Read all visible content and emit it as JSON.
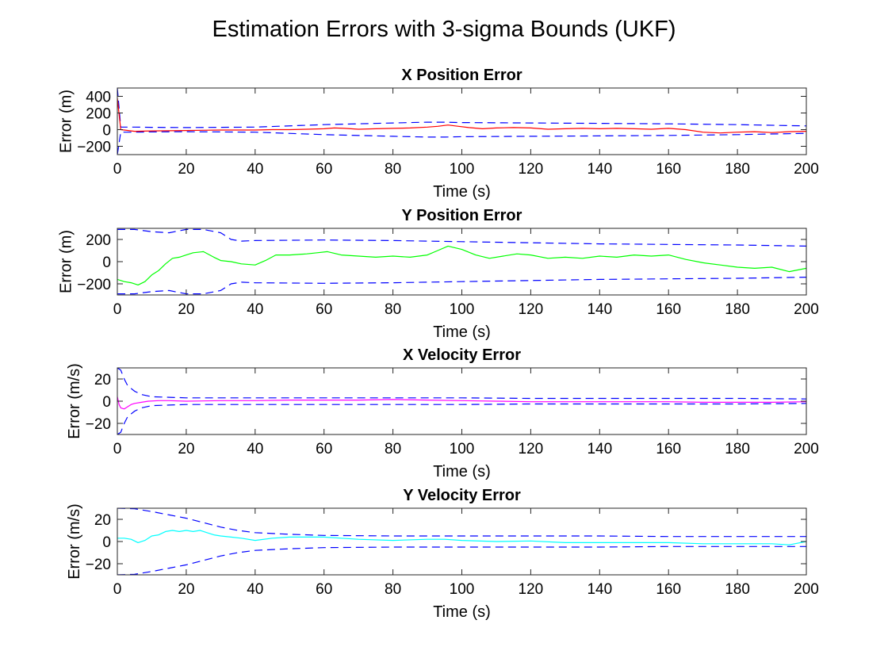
{
  "figure": {
    "title": "Estimation Errors with 3-sigma Bounds (UKF)"
  },
  "chart_data": [
    {
      "type": "line",
      "title": "X Position Error",
      "xlabel": "Time (s)",
      "ylabel": "Error (m)",
      "xlim": [
        0,
        200
      ],
      "ylim": [
        -300,
        500
      ],
      "xticks": [
        0,
        20,
        40,
        60,
        80,
        100,
        120,
        140,
        160,
        180,
        200
      ],
      "yticks": [
        -200,
        0,
        200,
        400
      ],
      "grid": false,
      "series": [
        {
          "role": "error",
          "color": "#ff0000",
          "x": [
            0,
            1,
            2,
            5,
            10,
            20,
            30,
            40,
            45,
            50,
            55,
            60,
            63,
            66,
            70,
            75,
            80,
            85,
            90,
            93,
            96,
            99,
            102,
            106,
            110,
            115,
            120,
            125,
            130,
            135,
            140,
            145,
            150,
            155,
            160,
            165,
            170,
            175,
            180,
            185,
            190,
            195,
            200
          ],
          "y": [
            380,
            0,
            -5,
            -20,
            -15,
            -10,
            -5,
            -5,
            0,
            0,
            5,
            10,
            20,
            15,
            5,
            10,
            15,
            20,
            30,
            40,
            55,
            40,
            25,
            10,
            20,
            25,
            20,
            5,
            10,
            15,
            10,
            15,
            10,
            5,
            15,
            0,
            -30,
            -40,
            -30,
            -25,
            -35,
            -25,
            -20
          ]
        },
        {
          "role": "upper-bound",
          "color": "#0000ff",
          "dash": true,
          "x": [
            0,
            1,
            2,
            5,
            10,
            20,
            40,
            60,
            80,
            90,
            95,
            100,
            120,
            140,
            160,
            180,
            200
          ],
          "y": [
            500,
            30,
            30,
            30,
            28,
            25,
            30,
            60,
            80,
            90,
            90,
            85,
            80,
            75,
            70,
            60,
            45
          ]
        },
        {
          "role": "lower-bound",
          "color": "#0000ff",
          "dash": true,
          "x": [
            0,
            1,
            2,
            5,
            10,
            20,
            40,
            60,
            80,
            90,
            95,
            100,
            120,
            140,
            160,
            180,
            200
          ],
          "y": [
            -300,
            -30,
            -30,
            -30,
            -28,
            -25,
            -30,
            -60,
            -80,
            -90,
            -90,
            -85,
            -80,
            -75,
            -70,
            -60,
            -45
          ]
        }
      ]
    },
    {
      "type": "line",
      "title": "Y Position Error",
      "xlabel": "Time (s)",
      "ylabel": "Error (m)",
      "xlim": [
        0,
        200
      ],
      "ylim": [
        -300,
        300
      ],
      "xticks": [
        0,
        20,
        40,
        60,
        80,
        100,
        120,
        140,
        160,
        180,
        200
      ],
      "yticks": [
        -200,
        0,
        200
      ],
      "grid": false,
      "series": [
        {
          "role": "error",
          "color": "#00ff00",
          "x": [
            0,
            2,
            4,
            6,
            8,
            10,
            12,
            14,
            16,
            18,
            20,
            22,
            25,
            28,
            30,
            33,
            36,
            40,
            43,
            46,
            50,
            55,
            58,
            61,
            65,
            70,
            75,
            80,
            85,
            90,
            93,
            96,
            100,
            104,
            108,
            112,
            116,
            120,
            125,
            130,
            135,
            140,
            145,
            150,
            155,
            160,
            165,
            170,
            175,
            180,
            185,
            190,
            195,
            200
          ],
          "y": [
            -160,
            -180,
            -190,
            -210,
            -180,
            -120,
            -80,
            -20,
            30,
            40,
            60,
            80,
            90,
            40,
            10,
            0,
            -20,
            -30,
            10,
            60,
            60,
            70,
            80,
            90,
            60,
            50,
            40,
            50,
            40,
            60,
            100,
            140,
            110,
            60,
            30,
            50,
            70,
            60,
            30,
            40,
            30,
            50,
            40,
            60,
            50,
            60,
            20,
            -10,
            -30,
            -50,
            -60,
            -50,
            -90,
            -60
          ]
        },
        {
          "role": "upper-bound",
          "color": "#0000ff",
          "dash": true,
          "x": [
            0,
            5,
            10,
            15,
            20,
            25,
            30,
            33,
            36,
            40,
            60,
            80,
            100,
            120,
            140,
            160,
            180,
            200
          ],
          "y": [
            290,
            290,
            270,
            260,
            290,
            290,
            260,
            200,
            185,
            190,
            195,
            190,
            180,
            170,
            160,
            155,
            150,
            140
          ]
        },
        {
          "role": "lower-bound",
          "color": "#0000ff",
          "dash": true,
          "x": [
            0,
            5,
            10,
            15,
            20,
            25,
            30,
            33,
            36,
            40,
            60,
            80,
            100,
            120,
            140,
            160,
            180,
            200
          ],
          "y": [
            -290,
            -290,
            -270,
            -260,
            -290,
            -290,
            -260,
            -200,
            -185,
            -190,
            -195,
            -190,
            -180,
            -170,
            -160,
            -155,
            -150,
            -140
          ]
        }
      ]
    },
    {
      "type": "line",
      "title": "X Velocity Error",
      "xlabel": "Time (s)",
      "ylabel": "Error (m/s)",
      "xlim": [
        0,
        200
      ],
      "ylim": [
        -30,
        30
      ],
      "xticks": [
        0,
        20,
        40,
        60,
        80,
        100,
        120,
        140,
        160,
        180,
        200
      ],
      "yticks": [
        -20,
        0,
        20
      ],
      "grid": false,
      "series": [
        {
          "role": "error",
          "color": "#ff00ff",
          "x": [
            0,
            0.5,
            1,
            2,
            3,
            4,
            5,
            7,
            9,
            12,
            15,
            20,
            30,
            40,
            50,
            60,
            70,
            80,
            90,
            100,
            110,
            120,
            130,
            140,
            150,
            160,
            170,
            180,
            190,
            200
          ],
          "y": [
            4,
            -3,
            -6,
            -7,
            -5,
            -3,
            -2,
            -1,
            0,
            0.5,
            0.5,
            0,
            0.5,
            0.5,
            1,
            1,
            1,
            1.5,
            1,
            0.5,
            0,
            -0.5,
            -0.5,
            -0.5,
            -0.5,
            -0.5,
            -1,
            -1,
            -1,
            -0.5
          ]
        },
        {
          "role": "upper-bound",
          "color": "#0000ff",
          "dash": true,
          "x": [
            0,
            1,
            2,
            3,
            5,
            7,
            10,
            15,
            20,
            30,
            40,
            60,
            80,
            100,
            120,
            140,
            160,
            180,
            200
          ],
          "y": [
            30,
            28,
            20,
            14,
            9,
            6,
            4,
            3.5,
            3,
            3,
            3,
            3,
            3,
            3,
            2.5,
            2.5,
            2.5,
            2.5,
            2
          ]
        },
        {
          "role": "lower-bound",
          "color": "#0000ff",
          "dash": true,
          "x": [
            0,
            1,
            2,
            3,
            5,
            7,
            10,
            15,
            20,
            30,
            40,
            60,
            80,
            100,
            120,
            140,
            160,
            180,
            200
          ],
          "y": [
            -30,
            -28,
            -20,
            -14,
            -9,
            -6,
            -4,
            -3.5,
            -3,
            -3,
            -3,
            -3,
            -3,
            -3,
            -2.5,
            -2.5,
            -2.5,
            -2.5,
            -2
          ]
        }
      ]
    },
    {
      "type": "line",
      "title": "Y Velocity Error",
      "xlabel": "Time (s)",
      "ylabel": "Error (m/s)",
      "xlim": [
        0,
        200
      ],
      "ylim": [
        -30,
        30
      ],
      "xticks": [
        0,
        20,
        40,
        60,
        80,
        100,
        120,
        140,
        160,
        180,
        200
      ],
      "yticks": [
        -20,
        0,
        20
      ],
      "grid": false,
      "series": [
        {
          "role": "error",
          "color": "#00ffff",
          "x": [
            0,
            2,
            4,
            6,
            8,
            10,
            12,
            14,
            16,
            18,
            20,
            22,
            24,
            26,
            28,
            30,
            33,
            36,
            40,
            45,
            50,
            55,
            60,
            65,
            70,
            80,
            90,
            95,
            100,
            110,
            120,
            130,
            140,
            150,
            160,
            170,
            180,
            190,
            195,
            200
          ],
          "y": [
            3,
            3,
            2,
            -1,
            1,
            5,
            6,
            9,
            10,
            9,
            10,
            9,
            10,
            8,
            6,
            5,
            4,
            3,
            1,
            3,
            4,
            4,
            4,
            3,
            2,
            1,
            2,
            2,
            1,
            0,
            0.5,
            -1,
            -1,
            -1,
            -1,
            -2,
            -2,
            -2,
            -3,
            0
          ]
        },
        {
          "role": "upper-bound",
          "color": "#0000ff",
          "dash": true,
          "x": [
            0,
            5,
            10,
            15,
            20,
            25,
            30,
            35,
            40,
            50,
            60,
            80,
            100,
            120,
            140,
            160,
            180,
            200
          ],
          "y": [
            30,
            29.5,
            27,
            24,
            21,
            17,
            13,
            10,
            8,
            6.5,
            5.5,
            5,
            5,
            5,
            5,
            4.5,
            4.5,
            4.5
          ]
        },
        {
          "role": "lower-bound",
          "color": "#0000ff",
          "dash": true,
          "x": [
            0,
            5,
            10,
            15,
            20,
            25,
            30,
            35,
            40,
            50,
            60,
            80,
            100,
            120,
            140,
            160,
            180,
            200
          ],
          "y": [
            -30,
            -29.5,
            -27,
            -24,
            -21,
            -17,
            -13,
            -10,
            -8,
            -6.5,
            -5.5,
            -5,
            -5,
            -5,
            -5,
            -4.5,
            -4.5,
            -4.5
          ]
        }
      ]
    }
  ]
}
